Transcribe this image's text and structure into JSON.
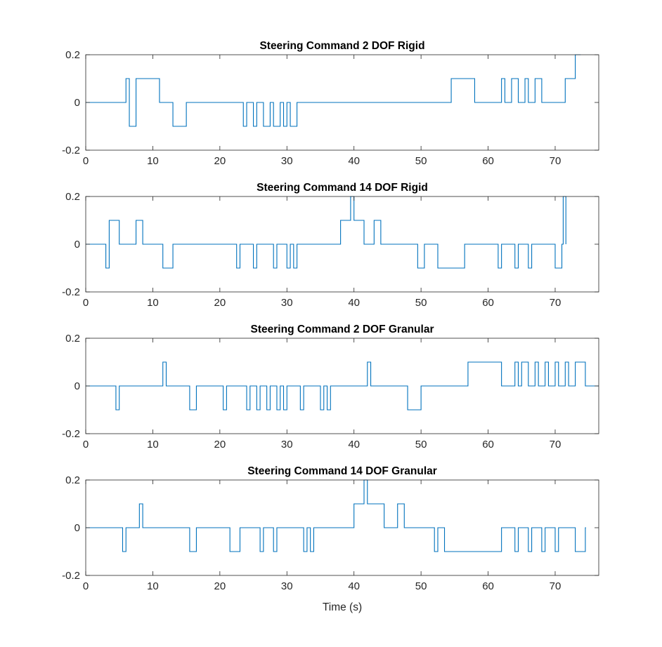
{
  "figure": {
    "xlabel": "Time (s)",
    "line_color": "#0072BD"
  },
  "chart_data": [
    {
      "type": "line",
      "title": "Steering Command 2 DOF Rigid",
      "xlim": [
        0,
        76.5
      ],
      "ylim": [
        -0.2,
        0.2
      ],
      "xticks": [
        0,
        10,
        20,
        30,
        40,
        50,
        60,
        70
      ],
      "yticks": [
        -0.2,
        0,
        0.2
      ],
      "ytick_labels": [
        "-0.2",
        "0",
        "0.2"
      ],
      "grid": false,
      "step": [
        [
          0,
          0
        ],
        [
          6,
          0.1
        ],
        [
          6.5,
          -0.1
        ],
        [
          7.5,
          0.1
        ],
        [
          11,
          0
        ],
        [
          13,
          -0.1
        ],
        [
          15,
          0
        ],
        [
          23.5,
          -0.1
        ],
        [
          24,
          0
        ],
        [
          25,
          -0.1
        ],
        [
          25.5,
          0
        ],
        [
          26.5,
          -0.1
        ],
        [
          27.5,
          0
        ],
        [
          28,
          -0.1
        ],
        [
          29,
          0
        ],
        [
          29.5,
          -0.1
        ],
        [
          30,
          0
        ],
        [
          30.5,
          -0.1
        ],
        [
          31.5,
          0
        ],
        [
          54.5,
          0.1
        ],
        [
          58,
          0
        ],
        [
          62,
          0.1
        ],
        [
          62.5,
          0
        ],
        [
          63.5,
          0.1
        ],
        [
          64.5,
          0
        ],
        [
          65.5,
          0.1
        ],
        [
          66,
          0
        ],
        [
          67,
          0.1
        ],
        [
          68,
          0
        ],
        [
          71.5,
          0.1
        ],
        [
          73,
          0.2
        ],
        [
          73.8,
          0.2
        ]
      ]
    },
    {
      "type": "line",
      "title": "Steering Command 14 DOF Rigid",
      "xlim": [
        0,
        76.5
      ],
      "ylim": [
        -0.2,
        0.2
      ],
      "xticks": [
        0,
        10,
        20,
        30,
        40,
        50,
        60,
        70
      ],
      "yticks": [
        -0.2,
        0,
        0.2
      ],
      "ytick_labels": [
        "-0.2",
        "0",
        "0.2"
      ],
      "grid": false,
      "step": [
        [
          0,
          0
        ],
        [
          3,
          -0.1
        ],
        [
          3.5,
          0.1
        ],
        [
          5,
          0
        ],
        [
          7.5,
          0.1
        ],
        [
          8.5,
          0
        ],
        [
          11.5,
          -0.1
        ],
        [
          13,
          0
        ],
        [
          22.5,
          -0.1
        ],
        [
          23,
          0
        ],
        [
          25,
          -0.1
        ],
        [
          25.5,
          0
        ],
        [
          28,
          -0.1
        ],
        [
          28.5,
          0
        ],
        [
          30,
          -0.1
        ],
        [
          30.5,
          0
        ],
        [
          31,
          -0.1
        ],
        [
          31.5,
          0
        ],
        [
          38,
          0.1
        ],
        [
          39.5,
          0.2
        ],
        [
          40,
          0.1
        ],
        [
          41.5,
          0
        ],
        [
          43,
          0.1
        ],
        [
          44,
          0
        ],
        [
          49.5,
          -0.1
        ],
        [
          50.5,
          0
        ],
        [
          52.5,
          -0.1
        ],
        [
          56.5,
          0
        ],
        [
          61.5,
          -0.1
        ],
        [
          62,
          0
        ],
        [
          64,
          -0.1
        ],
        [
          64.5,
          0
        ],
        [
          66,
          -0.1
        ],
        [
          66.5,
          0
        ],
        [
          70,
          -0.1
        ],
        [
          71,
          0
        ],
        [
          71.2,
          0.2
        ],
        [
          71.6,
          0
        ]
      ]
    },
    {
      "type": "line",
      "title": "Steering Command 2 DOF Granular",
      "xlim": [
        0,
        76.5
      ],
      "ylim": [
        -0.2,
        0.2
      ],
      "xticks": [
        0,
        10,
        20,
        30,
        40,
        50,
        60,
        70
      ],
      "yticks": [
        -0.2,
        0,
        0.2
      ],
      "ytick_labels": [
        "-0.2",
        "0",
        "0.2"
      ],
      "grid": false,
      "step": [
        [
          0,
          0
        ],
        [
          4.5,
          -0.1
        ],
        [
          5,
          0
        ],
        [
          11.5,
          0.1
        ],
        [
          12,
          0
        ],
        [
          15.5,
          -0.1
        ],
        [
          16.5,
          0
        ],
        [
          20.5,
          -0.1
        ],
        [
          21,
          0
        ],
        [
          24,
          -0.1
        ],
        [
          24.5,
          0
        ],
        [
          25.5,
          -0.1
        ],
        [
          26,
          0
        ],
        [
          27,
          -0.1
        ],
        [
          27.5,
          0
        ],
        [
          28.5,
          -0.1
        ],
        [
          29,
          0
        ],
        [
          29.5,
          -0.1
        ],
        [
          30,
          0
        ],
        [
          32,
          -0.1
        ],
        [
          32.5,
          0
        ],
        [
          35,
          -0.1
        ],
        [
          35.5,
          0
        ],
        [
          36,
          -0.1
        ],
        [
          36.5,
          0
        ],
        [
          42,
          0.1
        ],
        [
          42.5,
          0
        ],
        [
          48,
          -0.1
        ],
        [
          50,
          0
        ],
        [
          57,
          0.1
        ],
        [
          62,
          0
        ],
        [
          64,
          0.1
        ],
        [
          64.5,
          0
        ],
        [
          65,
          0.1
        ],
        [
          66,
          0
        ],
        [
          67,
          0.1
        ],
        [
          67.5,
          0
        ],
        [
          68.5,
          0.1
        ],
        [
          69,
          0
        ],
        [
          70,
          0.1
        ],
        [
          70.5,
          0
        ],
        [
          71.5,
          0.1
        ],
        [
          72,
          0
        ],
        [
          73,
          0.1
        ],
        [
          74.5,
          0
        ],
        [
          76,
          0
        ],
        [
          76.5,
          0
        ]
      ]
    },
    {
      "type": "line",
      "title": "Steering Command 14 DOF Granular",
      "xlim": [
        0,
        76.5
      ],
      "ylim": [
        -0.2,
        0.2
      ],
      "xticks": [
        0,
        10,
        20,
        30,
        40,
        50,
        60,
        70
      ],
      "yticks": [
        -0.2,
        0,
        0.2
      ],
      "ytick_labels": [
        "-0.2",
        "0",
        "0.2"
      ],
      "grid": false,
      "step": [
        [
          0,
          0
        ],
        [
          5.5,
          -0.1
        ],
        [
          6,
          0
        ],
        [
          8,
          0.1
        ],
        [
          8.5,
          0
        ],
        [
          15.5,
          -0.1
        ],
        [
          16.5,
          0
        ],
        [
          21.5,
          -0.1
        ],
        [
          23,
          0
        ],
        [
          26,
          -0.1
        ],
        [
          26.5,
          0
        ],
        [
          28,
          -0.1
        ],
        [
          28.5,
          0
        ],
        [
          32.5,
          -0.1
        ],
        [
          33,
          0
        ],
        [
          33.5,
          -0.1
        ],
        [
          34,
          0
        ],
        [
          40,
          0.1
        ],
        [
          41.5,
          0.2
        ],
        [
          42,
          0.1
        ],
        [
          44.5,
          0
        ],
        [
          46.5,
          0.1
        ],
        [
          47.5,
          0
        ],
        [
          52,
          -0.1
        ],
        [
          52.5,
          0
        ],
        [
          53.5,
          -0.1
        ],
        [
          62,
          0
        ],
        [
          64,
          -0.1
        ],
        [
          64.5,
          0
        ],
        [
          66,
          -0.1
        ],
        [
          66.5,
          0
        ],
        [
          68,
          -0.1
        ],
        [
          68.5,
          0
        ],
        [
          70,
          -0.1
        ],
        [
          70.5,
          0
        ],
        [
          73,
          -0.1
        ],
        [
          74.5,
          0
        ],
        [
          74.6,
          0
        ]
      ]
    }
  ]
}
